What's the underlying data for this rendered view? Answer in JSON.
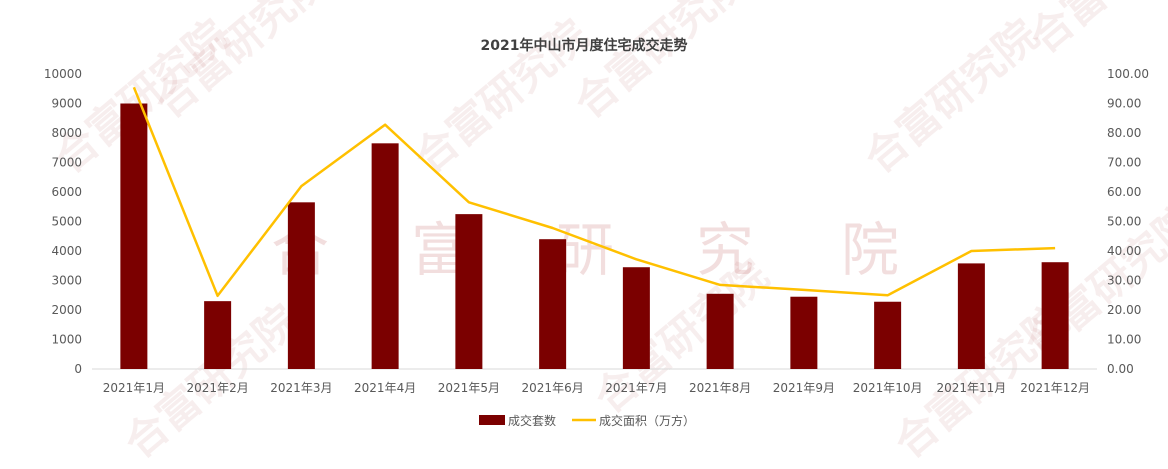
{
  "chart_data": {
    "type": "bar",
    "title": "2021年中山市月度住宅成交走势",
    "categories": [
      "2021年1月",
      "2021年2月",
      "2021年3月",
      "2021年4月",
      "2021年5月",
      "2021年6月",
      "2021年7月",
      "2021年8月",
      "2021年9月",
      "2021年10月",
      "2021年11月",
      "2021年12月"
    ],
    "series": [
      {
        "name": "成交套数",
        "type": "bar",
        "axis": "left",
        "color": "#7b0000",
        "values": [
          9000,
          2300,
          5650,
          7650,
          5250,
          4400,
          3450,
          2550,
          2450,
          2280,
          3580,
          3620
        ]
      },
      {
        "name": "成交面积（万方）",
        "type": "line",
        "axis": "right",
        "color": "#ffc000",
        "values": [
          95.5,
          24.8,
          62.0,
          82.8,
          56.5,
          47.8,
          37.2,
          28.5,
          26.8,
          25.0,
          40.0,
          41.0
        ]
      }
    ],
    "y_left": {
      "min": 0,
      "max": 10000,
      "ticks": [
        "0",
        "1000",
        "2000",
        "3000",
        "4000",
        "5000",
        "6000",
        "7000",
        "8000",
        "9000",
        "10000"
      ]
    },
    "y_right": {
      "min": 0,
      "max": 100,
      "ticks": [
        "0.00",
        "10.00",
        "20.00",
        "30.00",
        "40.00",
        "50.00",
        "60.00",
        "70.00",
        "80.00",
        "90.00",
        "100.00"
      ]
    },
    "grid": false,
    "legend_position": "bottom",
    "watermark": "合富研究院",
    "watermark_center": [
      "合",
      "富",
      "研",
      "究",
      "院"
    ]
  }
}
